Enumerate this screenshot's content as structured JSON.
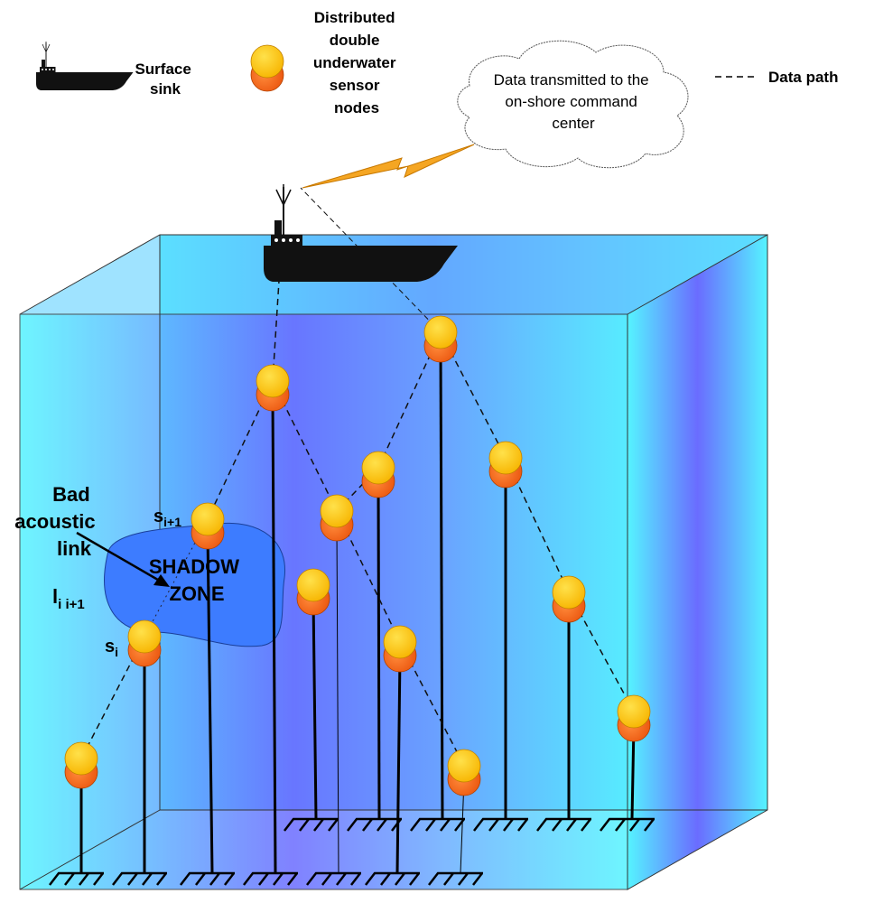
{
  "legend": {
    "sink": [
      "Surface",
      "sink"
    ],
    "nodes": [
      "Distributed",
      "double",
      "underwater",
      "sensor",
      "nodes"
    ],
    "path": "Data path"
  },
  "cloud": [
    "Data transmitted to the",
    "on-shore command",
    "center"
  ],
  "bad_link": {
    "lines": [
      "Bad",
      "acoustic",
      "link"
    ],
    "symbol": {
      "base": "l",
      "sub": "i i+1"
    }
  },
  "shadow_zone": [
    "SHADOW",
    "ZONE"
  ],
  "node_labels": [
    {
      "base": "s",
      "sub": "i+1"
    },
    {
      "base": "s",
      "sub": "i"
    }
  ]
}
